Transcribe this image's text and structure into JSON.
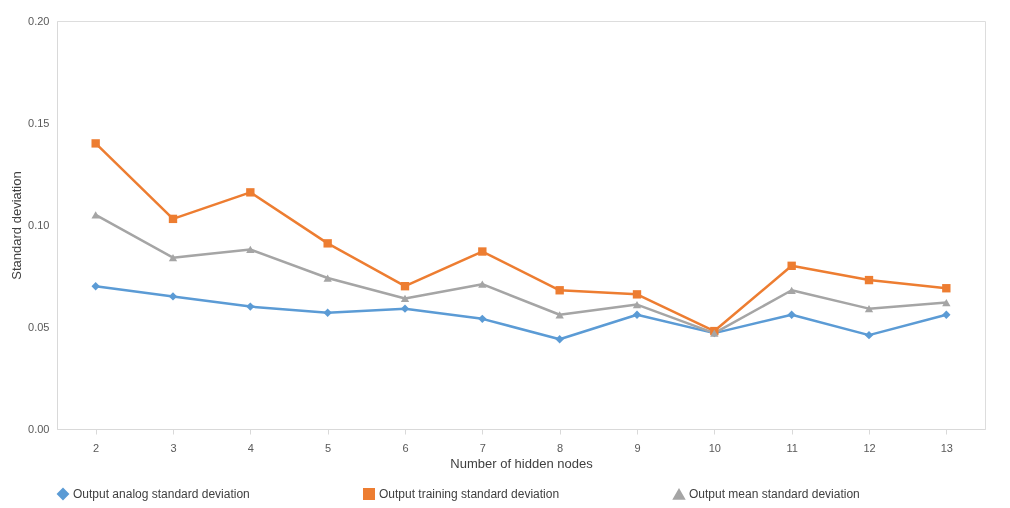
{
  "chart_data": {
    "type": "line",
    "xlabel": "Number of hidden nodes",
    "ylabel": "Standard deviation",
    "categories": [
      "2",
      "3",
      "4",
      "5",
      "6",
      "7",
      "8",
      "9",
      "10",
      "11",
      "12",
      "13"
    ],
    "series": [
      {
        "name": "Output analog standard deviation",
        "color": "#5b9bd5",
        "marker": "diamond",
        "values": [
          0.07,
          0.065,
          0.06,
          0.057,
          0.059,
          0.054,
          0.044,
          0.056,
          0.047,
          0.056,
          0.046,
          0.056
        ]
      },
      {
        "name": "Output training standard deviation",
        "color": "#ed7d31",
        "marker": "square",
        "values": [
          0.14,
          0.103,
          0.116,
          0.091,
          0.07,
          0.087,
          0.068,
          0.066,
          0.048,
          0.08,
          0.073,
          0.069
        ]
      },
      {
        "name": "Output mean standard deviation",
        "color": "#a5a5a5",
        "marker": "triangle",
        "values": [
          0.105,
          0.084,
          0.088,
          0.074,
          0.064,
          0.071,
          0.056,
          0.061,
          0.047,
          0.068,
          0.059,
          0.062
        ]
      }
    ],
    "ylim": [
      0,
      0.2
    ],
    "yticks": [
      {
        "value": 0,
        "label": "0.00"
      },
      {
        "value": 0.05,
        "label": "0.05"
      },
      {
        "value": 0.1,
        "label": "0.10"
      },
      {
        "value": 0.15,
        "label": "0.15"
      },
      {
        "value": 0.2,
        "label": "0.20"
      }
    ],
    "grid": false,
    "legend": "bottom",
    "line_style": "solid"
  }
}
